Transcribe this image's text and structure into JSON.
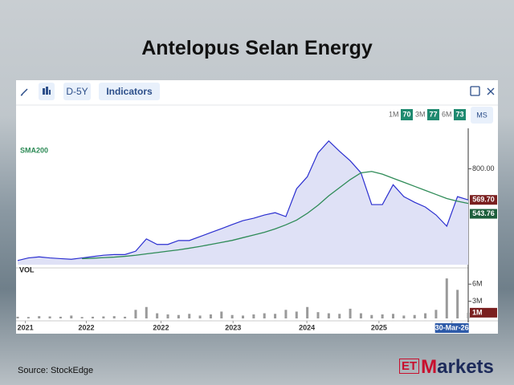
{
  "toolbar": {
    "range": "D-5Y",
    "indicators": "Indicators",
    "periods": [
      {
        "label": "1M",
        "score": "70"
      },
      {
        "label": "3M",
        "score": "77"
      },
      {
        "label": "6M",
        "score": "73"
      }
    ],
    "ms": "MS"
  },
  "source": "Source:  StockEdge",
  "logo": {
    "et": "ET",
    "m": "M",
    "rest": "arkets"
  },
  "chart_data": [
    {
      "type": "line",
      "title": "Antelopus Selan Energy",
      "x": [
        2021.0,
        2021.125,
        2021.25,
        2021.375,
        2021.5,
        2021.625,
        2021.75,
        2021.875,
        2022.0,
        2022.125,
        2022.25,
        2022.375,
        2022.5,
        2022.625,
        2022.75,
        2022.875,
        2023.0,
        2023.125,
        2023.25,
        2023.375,
        2023.5,
        2023.625,
        2023.75,
        2023.875,
        2024.0,
        2024.125,
        2024.25,
        2024.375,
        2024.5,
        2024.625,
        2024.75,
        2024.875,
        2025.0,
        2025.125,
        2025.25,
        2025.375,
        2025.5,
        2025.625,
        2025.75,
        2025.875,
        2026.0,
        2026.125,
        2026.25
      ],
      "series": [
        {
          "color": "#2b2fd0",
          "values": [
            121,
            140,
            148,
            140,
            135,
            130,
            140,
            150,
            160,
            165,
            165,
            190,
            281,
            240,
            240,
            269,
            269,
            298,
            328,
            357,
            387,
            416,
            434,
            458,
            475,
            446,
            652,
            741,
            918,
            1006,
            930,
            859,
            770,
            535,
            535,
            682,
            594,
            552,
            517,
            458,
            375,
            594,
            569.7
          ],
          "value_labels": [
            null,
            null,
            null,
            null,
            null,
            null,
            null,
            null,
            null,
            null,
            null,
            null,
            null,
            null,
            null,
            null,
            null,
            null,
            null,
            null,
            null,
            null,
            null,
            null,
            null,
            null,
            null,
            null,
            null,
            null,
            null,
            null,
            null,
            null,
            null,
            null,
            null,
            null,
            null,
            null,
            null,
            null,
            "569.70"
          ]
        },
        {
          "name": "SMA200",
          "color": "#2e8b57",
          "values": [
            null,
            null,
            null,
            null,
            null,
            null,
            135,
            138,
            142,
            146,
            152,
            160,
            170,
            180,
            190,
            200,
            212,
            225,
            240,
            255,
            270,
            290,
            310,
            330,
            355,
            385,
            420,
            470,
            530,
            600,
            660,
            720,
            770,
            780,
            760,
            730,
            700,
            670,
            640,
            610,
            580,
            560,
            543.76
          ],
          "value_labels": [
            null,
            null,
            null,
            null,
            null,
            null,
            null,
            null,
            null,
            null,
            null,
            null,
            null,
            null,
            null,
            null,
            null,
            null,
            null,
            null,
            null,
            null,
            null,
            null,
            null,
            null,
            null,
            null,
            null,
            null,
            null,
            null,
            null,
            null,
            null,
            null,
            null,
            null,
            null,
            null,
            null,
            null,
            "543.76"
          ]
        }
      ],
      "xlim": [
        2021.0,
        2026.25
      ],
      "xticks": [
        {
          "value": 2021.09,
          "label": "2021"
        },
        {
          "value": 2021.8,
          "label": "2022"
        },
        {
          "value": 2022.67,
          "label": "2022"
        },
        {
          "value": 2023.51,
          "label": "2023"
        },
        {
          "value": 2024.37,
          "label": "2024"
        },
        {
          "value": 2025.21,
          "label": "2025"
        },
        {
          "value": 2026.06,
          "label": "30-Mar-26"
        }
      ],
      "ylim": [
        90,
        1040
      ],
      "yticks": [
        {
          "value": 800,
          "label": "800.00"
        }
      ]
    },
    {
      "type": "bar",
      "title": "VOL",
      "color": "#9a9a9a",
      "values": [
        300000,
        250000,
        400000,
        350000,
        300000,
        500000,
        250000,
        300000,
        350000,
        400000,
        300000,
        1500000,
        2000000,
        900000,
        700000,
        600000,
        800000,
        500000,
        700000,
        1200000,
        600000,
        500000,
        700000,
        900000,
        800000,
        1500000,
        1200000,
        2000000,
        1100000,
        900000,
        800000,
        1700000,
        900000,
        600000,
        700000,
        800000,
        500000,
        600000,
        900000,
        1500000,
        7000000,
        5000000,
        1000000
      ],
      "value_labels": [
        null,
        null,
        null,
        null,
        null,
        null,
        null,
        null,
        null,
        null,
        null,
        null,
        null,
        null,
        null,
        null,
        null,
        null,
        null,
        null,
        null,
        null,
        null,
        null,
        null,
        null,
        null,
        null,
        null,
        null,
        null,
        null,
        null,
        null,
        null,
        null,
        null,
        null,
        null,
        null,
        null,
        null,
        "1M"
      ],
      "ylim": [
        0,
        8000000
      ],
      "yticks": [
        {
          "value": 6000000,
          "label": "6M"
        },
        {
          "value": 3000000,
          "label": "3M"
        }
      ]
    }
  ]
}
